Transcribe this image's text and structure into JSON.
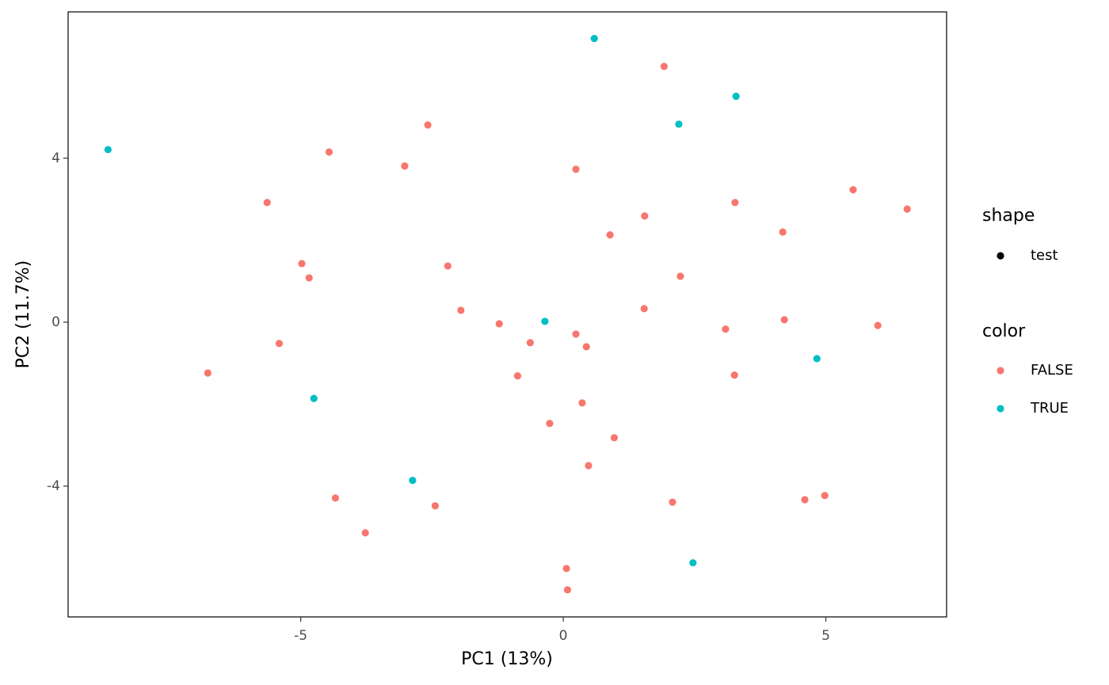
{
  "chart_data": {
    "type": "scatter",
    "x_label": "PC1 (13%)",
    "y_label": "PC2 (11.7%)",
    "xlim": [
      -9.43,
      7.3
    ],
    "ylim": [
      -7.19,
      7.57
    ],
    "xticks": [
      -5,
      0,
      5
    ],
    "yticks": [
      4,
      0,
      -4
    ],
    "grid": false,
    "legend_shape": {
      "title": "shape",
      "entries": [
        "test"
      ],
      "color": "#000000"
    },
    "legend_title": "color",
    "series": [
      {
        "name": "FALSE",
        "color": "#f8766d",
        "x": [
          1.92,
          -2.58,
          -4.46,
          -3.02,
          0.24,
          -5.64,
          3.27,
          5.52,
          6.55,
          1.55,
          4.18,
          0.89,
          -4.98,
          -2.2,
          -4.84,
          2.23,
          -1.95,
          1.54,
          -1.22,
          4.21,
          5.99,
          3.09,
          0.24,
          -5.41,
          -0.63,
          0.44,
          -6.77,
          -0.87,
          3.26,
          0.36,
          -0.26,
          0.97,
          0.48,
          -4.34,
          -2.44,
          2.08,
          4.6,
          4.98,
          -3.77,
          0.06,
          0.08
        ],
        "y": [
          6.24,
          4.81,
          4.15,
          3.81,
          3.73,
          2.92,
          2.92,
          3.23,
          2.76,
          2.59,
          2.2,
          2.13,
          1.43,
          1.37,
          1.08,
          1.12,
          0.29,
          0.33,
          -0.04,
          0.06,
          -0.08,
          -0.17,
          -0.29,
          -0.52,
          -0.5,
          -0.6,
          -1.24,
          -1.31,
          -1.29,
          -1.97,
          -2.47,
          -2.82,
          -3.5,
          -4.29,
          -4.48,
          -4.39,
          -4.33,
          -4.23,
          -5.14,
          -6.01,
          -6.53
        ]
      },
      {
        "name": "TRUE",
        "color": "#00bfc4",
        "x": [
          0.59,
          3.29,
          2.2,
          -8.67,
          -0.35,
          4.83,
          -4.75,
          -2.87,
          2.47
        ],
        "y": [
          6.92,
          5.51,
          4.83,
          4.21,
          0.02,
          -0.89,
          -1.86,
          -3.86,
          -5.87
        ]
      }
    ]
  }
}
